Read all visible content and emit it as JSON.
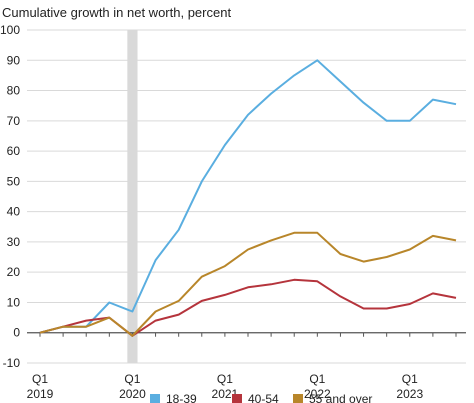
{
  "chart_data": {
    "type": "line",
    "title": "Cumulative growth in net worth, percent",
    "xlabel": "",
    "ylabel": "",
    "ylim": [
      -10,
      100
    ],
    "yticks": [
      -10,
      0,
      10,
      20,
      30,
      40,
      50,
      60,
      70,
      80,
      90,
      100
    ],
    "x": [
      "2019Q1",
      "2019Q2",
      "2019Q3",
      "2019Q4",
      "2020Q1",
      "2020Q2",
      "2020Q3",
      "2020Q4",
      "2021Q1",
      "2021Q2",
      "2021Q3",
      "2021Q4",
      "2022Q1",
      "2022Q2",
      "2022Q3",
      "2022Q4",
      "2023Q1",
      "2023Q2",
      "2023Q3"
    ],
    "xticks": [
      {
        "x": "2019Q1",
        "line1": "Q1",
        "line2": "2019"
      },
      {
        "x": "2020Q1",
        "line1": "Q1",
        "line2": "2020"
      },
      {
        "x": "2021Q1",
        "line1": "Q1",
        "line2": "2021"
      },
      {
        "x": "2022Q1",
        "line1": "Q1",
        "line2": "2022"
      },
      {
        "x": "2023Q1",
        "line1": "Q1",
        "line2": "2023"
      }
    ],
    "shaded_recession": {
      "from": "2019Q4",
      "to": "2020Q1"
    },
    "series": [
      {
        "name": "18-39",
        "color": "#5aaee0",
        "values": [
          0,
          2,
          2,
          10,
          7,
          24,
          34,
          50,
          62,
          72,
          79,
          85,
          90,
          83,
          76,
          70,
          70,
          77,
          75.5
        ]
      },
      {
        "name": "40-54",
        "color": "#b5343c",
        "values": [
          0,
          2,
          4,
          5,
          -1,
          4,
          6,
          10.5,
          12.5,
          15,
          16,
          17.5,
          17,
          12,
          8,
          8,
          9.5,
          13,
          11.5
        ]
      },
      {
        "name": "55 and over",
        "color": "#b8862a",
        "values": [
          0,
          2,
          2,
          5,
          -1,
          7,
          10.5,
          18.5,
          22,
          27.5,
          30.5,
          33,
          33,
          26,
          23.5,
          25,
          27.5,
          32,
          30.5
        ]
      }
    ],
    "legend": {
      "placement": "bottom"
    },
    "grid": true
  }
}
